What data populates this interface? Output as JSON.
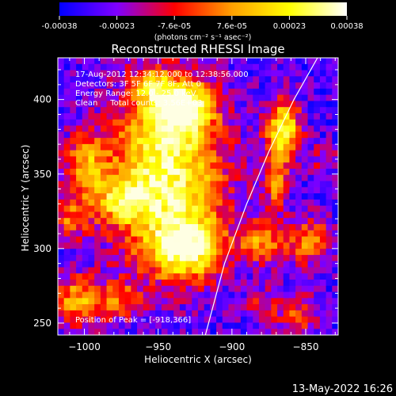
{
  "chart_data": {
    "type": "heatmap",
    "title": "Reconstructed RHESSI Image",
    "xlabel": "Heliocentric X (arcsec)",
    "ylabel": "Heliocentric Y (arcsec)",
    "xlim": [
      -1018,
      -828
    ],
    "ylim": [
      242,
      428
    ],
    "xticks": [
      -1000,
      -950,
      -900,
      -850
    ],
    "yticks": [
      250,
      300,
      350,
      400
    ],
    "colorbar": {
      "label": "(photons cm⁻² s⁻¹ asec⁻²)",
      "range": [
        -0.00038,
        0.00038
      ],
      "ticks": [
        "-0.00038",
        "-0.00023",
        "-7.6e-05",
        "7.6e-05",
        "0.00023",
        "0.00038"
      ],
      "colormap": [
        "#0000ff",
        "#7f00ff",
        "#ff0000",
        "#ffa000",
        "#ffff00",
        "#ffffff"
      ]
    },
    "annotations": [
      "17-Aug-2012 12:34:12.000 to 12:38:56.000",
      "Detectors: 3F 5F 6F 7F 8F, Att 0",
      "Energy Range: 12.0 - 25.0 keV",
      "Clean     Total counts: 3.56E+03"
    ],
    "peak_label": "Position of Peak = [-918,366]",
    "hotspots": [
      {
        "x": -945,
        "y": 350,
        "sx": 28,
        "sy": 42,
        "a": 1.0
      },
      {
        "x": -935,
        "y": 395,
        "sx": 14,
        "sy": 12,
        "a": 0.9
      },
      {
        "x": -930,
        "y": 300,
        "sx": 16,
        "sy": 14,
        "a": 0.85
      },
      {
        "x": -975,
        "y": 332,
        "sx": 12,
        "sy": 10,
        "a": 0.55
      },
      {
        "x": -1000,
        "y": 355,
        "sx": 10,
        "sy": 14,
        "a": 0.6
      },
      {
        "x": -1010,
        "y": 320,
        "sx": 10,
        "sy": 10,
        "a": 0.45
      },
      {
        "x": -1005,
        "y": 265,
        "sx": 12,
        "sy": 12,
        "a": 0.65
      },
      {
        "x": -975,
        "y": 265,
        "sx": 10,
        "sy": 9,
        "a": 0.45
      },
      {
        "x": -955,
        "y": 410,
        "sx": 8,
        "sy": 8,
        "a": 0.45
      },
      {
        "x": -865,
        "y": 380,
        "sx": 8,
        "sy": 14,
        "a": 0.95
      },
      {
        "x": -870,
        "y": 345,
        "sx": 6,
        "sy": 12,
        "a": 0.6
      },
      {
        "x": -880,
        "y": 305,
        "sx": 10,
        "sy": 10,
        "a": 0.6
      },
      {
        "x": -848,
        "y": 305,
        "sx": 12,
        "sy": 12,
        "a": 0.55
      },
      {
        "x": -855,
        "y": 255,
        "sx": 10,
        "sy": 10,
        "a": 0.45
      },
      {
        "x": -880,
        "y": 262,
        "sx": 8,
        "sy": 8,
        "a": 0.35
      },
      {
        "x": -838,
        "y": 360,
        "sx": 8,
        "sy": 8,
        "a": 0.25
      }
    ],
    "limb_curve": [
      [
        -918,
        242
      ],
      [
        -905,
        290
      ],
      [
        -890,
        330
      ],
      [
        -875,
        365
      ],
      [
        -858,
        400
      ],
      [
        -842,
        428
      ]
    ]
  },
  "footer": {
    "timestamp": "13-May-2022 16:26"
  }
}
